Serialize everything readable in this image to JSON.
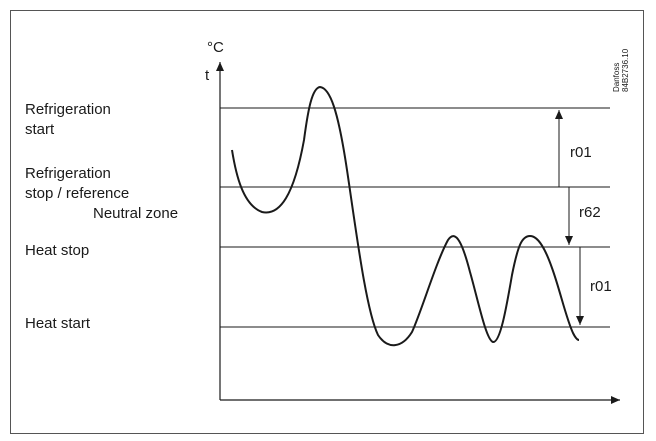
{
  "axis": {
    "y_unit": "°C",
    "y_symbol": "t"
  },
  "levels": {
    "refrigeration_start": [
      "Refrigeration",
      "start"
    ],
    "refrigeration_stop": [
      "Refrigeration",
      "stop / reference"
    ],
    "neutral_zone": "Neutral zone",
    "heat_stop": "Heat stop",
    "heat_start": "Heat start"
  },
  "parameters": {
    "upper_diff": "r01",
    "neutral": "r62",
    "lower_diff": "r01"
  },
  "watermark": {
    "brand": "Danfoss",
    "code": "84B2736.10"
  }
}
